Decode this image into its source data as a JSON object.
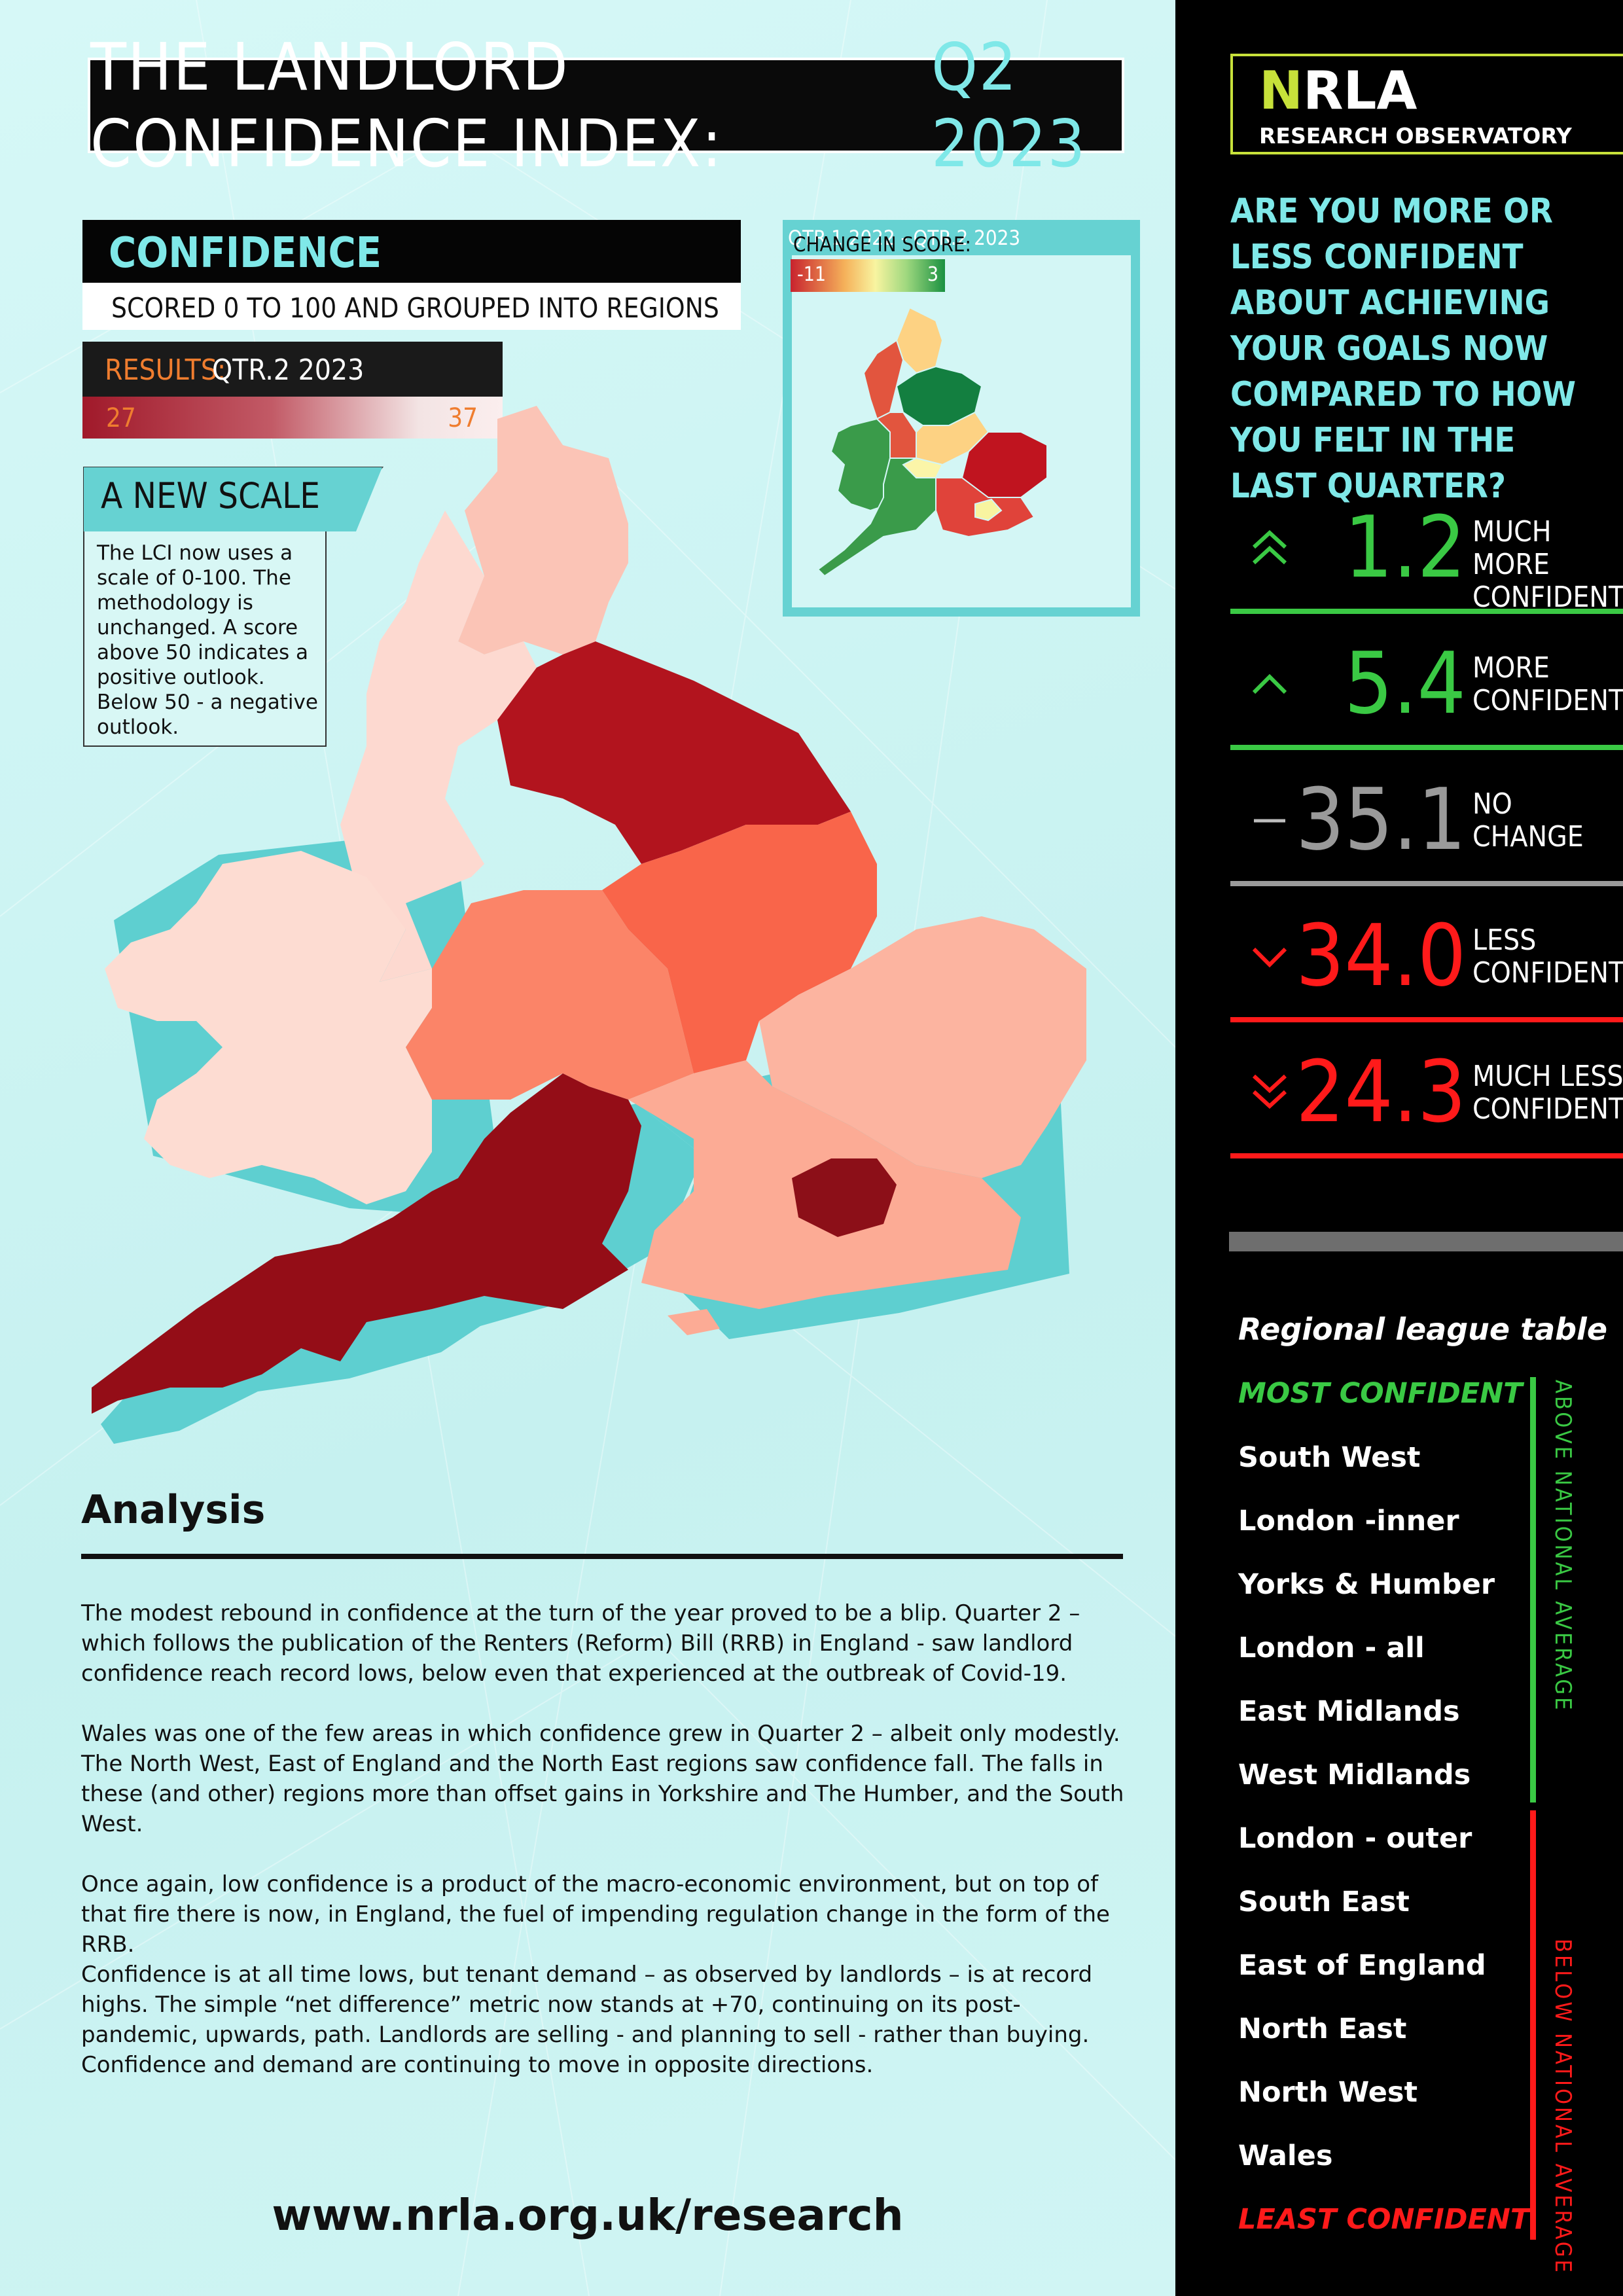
{
  "header": {
    "title_main": "THE LANDLORD CONFIDENCE INDEX:",
    "title_accent": "Q2 2023"
  },
  "confidence_panel": {
    "heading": "CONFIDENCE",
    "subheading": "SCORED 0 TO 100 AND GROUPED INTO REGIONS",
    "results_label": "RESULTS:",
    "results_period": "QTR.2 2023",
    "scale_min": "27",
    "scale_max": "37",
    "scale_colors": {
      "low": "#a0192a",
      "high": "#fbeeee"
    }
  },
  "new_scale": {
    "title": "A NEW SCALE",
    "text": "The LCI now uses a scale of 0-100. The methodology is unchanged. A score above 50 indicates a positive outlook. Below 50 - a negative outlook."
  },
  "change_map": {
    "heading_prefix": "CHANGE IN SCORE:",
    "heading_period": "QTR.1 2022 - QTR.2 2023",
    "scale_min": "-11",
    "scale_max": "3",
    "scale_colors": {
      "low": "#c8232e",
      "mid": "#f8f4a0",
      "high": "#1a9141"
    }
  },
  "analysis": {
    "heading": "Analysis",
    "paragraphs": [
      "The modest rebound in confidence at the turn of the year proved to be a blip. Quarter 2 – which follows the publication of the Renters (Reform) Bill (RRB) in England - saw landlord confidence reach record lows, below even that experienced at the outbreak of Covid-19.",
      "Wales was one of the few areas in which confidence grew in Quarter 2 – albeit only modestly. The North West, East of England and the North East regions saw confidence fall. The falls in these (and other) regions more than offset gains in Yorkshire and The Humber, and the South West.",
      "Once again, low confidence is a product of the macro-economic environment, but on top of that fire there is now, in England, the fuel of impending regulation change in the form of the RRB.",
      "Confidence is at all time lows, but tenant demand – as observed by landlords – is at record highs. The simple “net difference” metric now stands at +70, continuing on its post-pandemic, upwards, path. Landlords are selling - and planning to sell - rather than buying. Confidence and demand are continuing to move in opposite directions."
    ],
    "url": "www.nrla.org.uk/research"
  },
  "sidebar": {
    "logo_n": "N",
    "logo_rest": "RLA",
    "logo_sub": "RESEARCH OBSERVATORY",
    "question": "ARE YOU MORE OR LESS CONFIDENT ABOUT ACHIEVING YOUR GOALS NOW COMPARED TO HOW YOU FELT IN THE LAST QUARTER?",
    "stats": [
      {
        "value": "1.2",
        "label1": "MUCH MORE",
        "label2": "CONFIDENT",
        "color": "#3ac944",
        "icon": "double-chevron-up-icon"
      },
      {
        "value": "5.4",
        "label1": "MORE",
        "label2": "CONFIDENT",
        "color": "#3ac944",
        "icon": "chevron-up-icon"
      },
      {
        "value": "35.1",
        "label1": "NO",
        "label2": "CHANGE",
        "color": "#9a9a9a",
        "icon": "dash-icon"
      },
      {
        "value": "34.0",
        "label1": "LESS",
        "label2": "CONFIDENT",
        "color": "#ff1a1a",
        "icon": "chevron-down-icon"
      },
      {
        "value": "24.3",
        "label1": "MUCH LESS",
        "label2": "CONFIDENT",
        "color": "#ff1a1a",
        "icon": "double-chevron-down-icon"
      }
    ],
    "league": {
      "title": "Regional league table",
      "most": "MOST CONFIDENT",
      "least": "LEAST CONFIDENT",
      "above_label": "ABOVE NATIONAL AVERAGE",
      "below_label": "BELOW NATIONAL AVERAGE",
      "regions": [
        "South West",
        "London -inner",
        "Yorks & Humber",
        "London - all",
        "East Midlands",
        "West Midlands",
        "London - outer",
        "South East",
        "East of England",
        "North East",
        "North West",
        "Wales"
      ]
    }
  }
}
